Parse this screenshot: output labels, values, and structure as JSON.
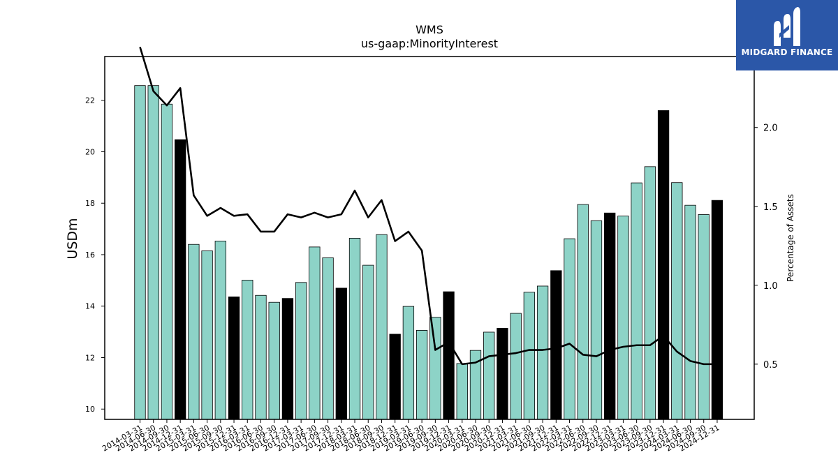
{
  "chart_data": {
    "type": "bar",
    "title": "WMS",
    "subtitle": "us-gaap:MinorityInterest",
    "ylabel": "USDm",
    "y2label": "Percentage of Assets",
    "ylim": [
      9.6,
      23.7
    ],
    "y2lim": [
      0.15,
      2.45
    ],
    "yticks": [
      10,
      12,
      14,
      16,
      18,
      20,
      22
    ],
    "y2ticks": [
      "0.5",
      "1.0",
      "1.5",
      "2.0"
    ],
    "colors": {
      "bar": "#8dd3c7",
      "bar_q4": "#000000",
      "line": "#000000"
    },
    "categories": [
      "2014-03-31",
      "2014-06-30",
      "2014-09-30",
      "2014-12-31",
      "2015-03-31",
      "2015-06-30",
      "2015-09-30",
      "2015-12-31",
      "2016-03-31",
      "2016-06-30",
      "2016-09-30",
      "2016-12-31",
      "2017-03-31",
      "2017-06-30",
      "2017-09-30",
      "2017-12-31",
      "2018-03-31",
      "2018-06-30",
      "2018-09-30",
      "2018-12-31",
      "2019-03-31",
      "2019-06-30",
      "2019-09-30",
      "2019-12-31",
      "2020-03-31",
      "2020-06-30",
      "2020-09-30",
      "2020-12-31",
      "2021-03-31",
      "2021-06-30",
      "2021-09-30",
      "2021-12-31",
      "2022-03-31",
      "2022-06-30",
      "2022-09-30",
      "2022-12-31",
      "2023-03-31",
      "2023-06-30",
      "2023-09-30",
      "2023-12-31",
      "2024-03-31",
      "2024-06-30",
      "2024-09-30",
      "2024-12-31"
    ],
    "series": [
      {
        "type": "bar",
        "values": [
          22.57,
          22.57,
          21.85,
          20.47,
          16.4,
          16.15,
          16.53,
          14.36,
          15.01,
          14.42,
          14.15,
          14.3,
          14.92,
          16.3,
          15.88,
          14.7,
          16.64,
          15.59,
          16.78,
          12.91,
          13.99,
          13.06,
          13.57,
          14.56,
          11.77,
          12.28,
          12.99,
          13.14,
          13.72,
          14.54,
          14.78,
          15.38,
          16.62,
          17.95,
          17.32,
          17.62,
          17.5,
          18.79,
          19.42,
          21.6,
          18.8,
          17.92,
          17.56,
          18.11
        ]
      },
      {
        "type": "line",
        "axis": "right",
        "values": [
          2.51,
          2.23,
          2.14,
          2.25,
          1.57,
          1.44,
          1.49,
          1.44,
          1.45,
          1.34,
          1.34,
          1.45,
          1.43,
          1.46,
          1.43,
          1.45,
          1.6,
          1.43,
          1.54,
          1.28,
          1.34,
          1.22,
          0.59,
          0.64,
          0.5,
          0.51,
          0.55,
          0.56,
          0.57,
          0.59,
          0.59,
          0.6,
          0.63,
          0.56,
          0.55,
          0.59,
          0.61,
          0.62,
          0.62,
          0.68,
          0.58,
          0.52,
          0.5,
          0.5
        ]
      }
    ]
  },
  "logo": {
    "text": "MIDGARD FINANCE"
  }
}
